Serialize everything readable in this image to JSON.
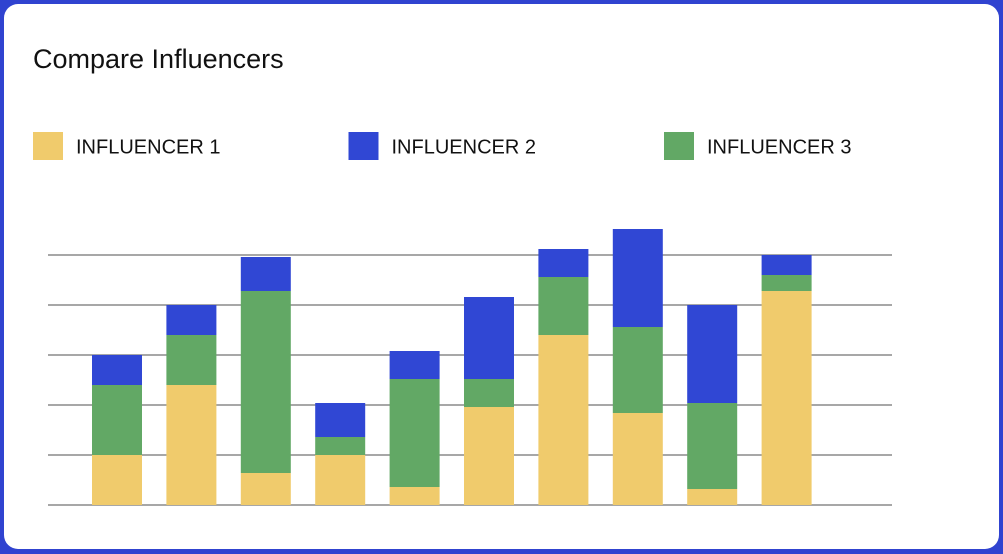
{
  "chart_data": {
    "type": "stacked-bar",
    "title": "Compare Influencers",
    "categories": [
      null,
      null,
      null,
      null,
      null,
      null,
      null,
      null,
      null,
      null
    ],
    "series": [
      {
        "name": "INFLUENCER 1",
        "color": "#f0cb6c",
        "values": [
          10,
          24,
          6.4,
          10,
          3.6,
          19.6,
          34,
          18.4,
          3.2,
          42.8
        ]
      },
      {
        "name": "INFLUENCER 2",
        "color": "#3047d4",
        "values": [
          6,
          6,
          6.8,
          6.8,
          5.6,
          16.4,
          5.6,
          19.6,
          19.6,
          4
        ]
      },
      {
        "name": "INFLUENCER 3",
        "color": "#62a865",
        "values": [
          14,
          10,
          36.4,
          3.6,
          21.6,
          5.6,
          11.6,
          17.2,
          17.2,
          3.2
        ]
      }
    ],
    "stack_order": [
      0,
      2,
      1
    ],
    "ylim": [
      0,
      60
    ],
    "yticks": [
      0,
      10,
      20,
      30,
      40,
      50
    ],
    "grid": true
  }
}
